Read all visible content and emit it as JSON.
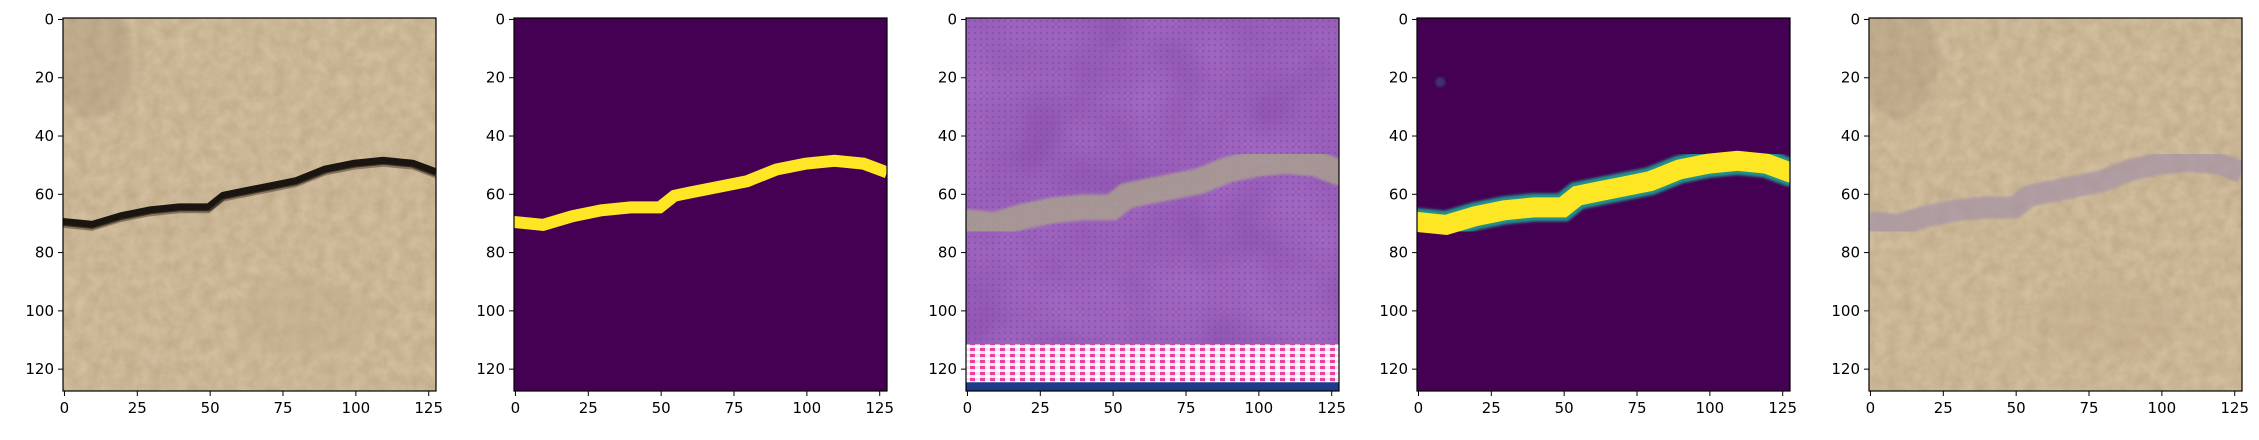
{
  "figure": {
    "panels": [
      {
        "kind": "sand-photo",
        "x_ticks": [
          "0",
          "25",
          "50",
          "75",
          "100",
          "125"
        ],
        "y_ticks": [
          "0",
          "20",
          "40",
          "60",
          "80",
          "100",
          "120"
        ]
      },
      {
        "kind": "binary-mask",
        "x_ticks": [
          "0",
          "25",
          "50",
          "75",
          "100",
          "125"
        ],
        "y_ticks": [
          "0",
          "20",
          "40",
          "60",
          "80",
          "100",
          "120"
        ]
      },
      {
        "kind": "generated-noisy",
        "x_ticks": [
          "0",
          "25",
          "50",
          "75",
          "100",
          "125"
        ],
        "y_ticks": [
          "0",
          "20",
          "40",
          "60",
          "80",
          "100",
          "120"
        ]
      },
      {
        "kind": "predicted-mask",
        "x_ticks": [
          "0",
          "25",
          "50",
          "75",
          "100",
          "125"
        ],
        "y_ticks": [
          "0",
          "20",
          "40",
          "60",
          "80",
          "100",
          "120"
        ]
      },
      {
        "kind": "reconstructed-photo",
        "x_ticks": [
          "0",
          "25",
          "50",
          "75",
          "100",
          "125"
        ],
        "y_ticks": [
          "0",
          "20",
          "40",
          "60",
          "80",
          "100",
          "120"
        ]
      }
    ],
    "image_size": [
      128,
      128
    ],
    "crack_path": [
      [
        0,
        70
      ],
      [
        10,
        71
      ],
      [
        20,
        68
      ],
      [
        30,
        66
      ],
      [
        40,
        65
      ],
      [
        50,
        65
      ],
      [
        55,
        61
      ],
      [
        60,
        60
      ],
      [
        70,
        58
      ],
      [
        80,
        56
      ],
      [
        90,
        52
      ],
      [
        100,
        50
      ],
      [
        110,
        49
      ],
      [
        120,
        50
      ],
      [
        128,
        53
      ]
    ],
    "colors": {
      "mask_background": "#440154",
      "mask_foreground": "#fde725",
      "sand": "#d6c3a3",
      "crack": "#1a1510",
      "purple_noise": "#a86cc6",
      "axis": "#000000"
    }
  }
}
